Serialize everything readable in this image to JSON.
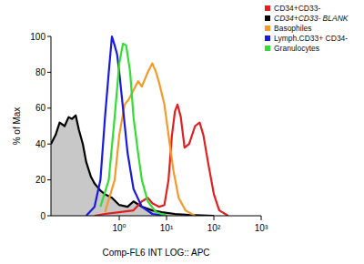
{
  "chart_data": {
    "type": "line",
    "x_label": "Comp-FL6 INT LOG:: APC",
    "y_label": "% of Max",
    "log": "x",
    "grid": false,
    "legend": "top right",
    "xlim": [
      0.036,
      1000
    ],
    "xticks": [
      {
        "value": 1,
        "label": "10⁰"
      },
      {
        "value": 10,
        "label": "10¹"
      },
      {
        "value": 100,
        "label": "10²"
      },
      {
        "value": 1000,
        "label": "10³"
      }
    ],
    "ylim": [
      0,
      100
    ],
    "yticks": [
      0,
      20,
      40,
      60,
      80,
      100
    ],
    "series": [
      {
        "name": "CD34+CD33-",
        "color": "#e02020",
        "x": [
          0.3,
          0.5,
          1,
          2,
          3,
          4,
          5,
          7,
          9,
          11,
          13,
          15,
          17,
          20,
          24,
          30,
          40,
          50,
          60,
          75,
          100,
          130,
          200
        ],
        "values": [
          0,
          1,
          2,
          3,
          8,
          10,
          7,
          5,
          6,
          20,
          45,
          58,
          62,
          55,
          38,
          40,
          50,
          52,
          45,
          30,
          12,
          3,
          0
        ]
      },
      {
        "name": "CD34+CD33- BLANK",
        "color": "#000000",
        "type": "area",
        "x": [
          0.036,
          0.045,
          0.055,
          0.07,
          0.085,
          0.1,
          0.12,
          0.14,
          0.17,
          0.2,
          0.25,
          0.3,
          0.4,
          0.5,
          0.7,
          1,
          1.5,
          2,
          3,
          5,
          8,
          15,
          30,
          100
        ],
        "values": [
          40,
          45,
          52,
          50,
          55,
          54,
          56,
          48,
          40,
          30,
          22,
          18,
          14,
          12,
          10,
          6,
          5,
          8,
          5,
          3,
          2,
          1,
          0.5,
          0
        ]
      },
      {
        "name": "Basophiles",
        "color": "#f59a2a",
        "x": [
          0.5,
          0.8,
          1,
          1.3,
          1.6,
          2,
          2.5,
          3,
          4,
          5,
          6,
          7,
          9,
          11,
          14,
          18,
          25,
          40
        ],
        "values": [
          2,
          20,
          45,
          62,
          65,
          70,
          75,
          72,
          80,
          85,
          80,
          74,
          62,
          45,
          25,
          10,
          3,
          0
        ]
      },
      {
        "name": "Lymph.CD33+ CD34-",
        "color": "#1a1ae0",
        "x": [
          0.2,
          0.3,
          0.4,
          0.5,
          0.6,
          0.7,
          0.8,
          0.9,
          1,
          1.2,
          1.5,
          2,
          3,
          5,
          10
        ],
        "values": [
          0,
          5,
          20,
          55,
          80,
          100,
          95,
          90,
          80,
          60,
          35,
          15,
          5,
          1,
          0
        ]
      },
      {
        "name": "Granulocytes",
        "color": "#33dd33",
        "x": [
          0.4,
          0.6,
          0.8,
          1,
          1.2,
          1.4,
          1.7,
          2,
          2.5,
          3,
          4,
          6,
          10
        ],
        "values": [
          5,
          20,
          55,
          85,
          96,
          95,
          80,
          55,
          35,
          20,
          8,
          2,
          0
        ]
      }
    ]
  }
}
